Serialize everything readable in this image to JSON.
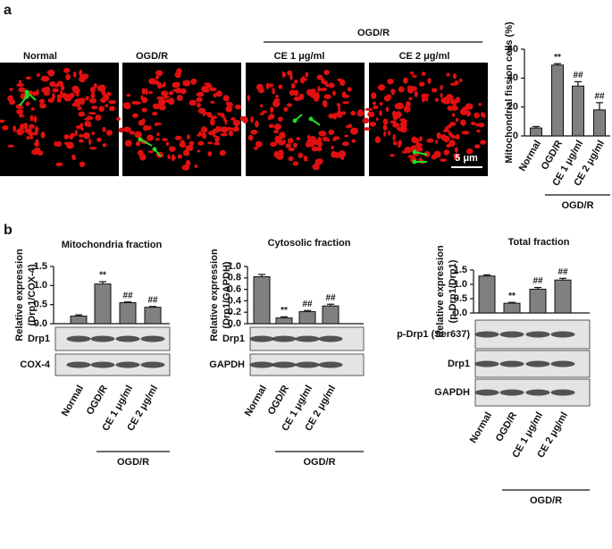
{
  "panel_labels": [
    "a",
    "b"
  ],
  "micrographs": {
    "group_label": "OGD/R",
    "panels": [
      "Normal",
      "OGD/R",
      "CE 1 μg/ml",
      "CE 2 μg/ml"
    ],
    "scale_bar": "5 μm"
  },
  "chart_data": [
    {
      "type": "bar",
      "ylabel": [
        "Mitochondrial fission cells (%)"
      ],
      "categories": [
        "Normal",
        "OGD/R",
        "CE 1 μg/ml",
        "CE 2 μg/ml"
      ],
      "group_label": "OGD/R",
      "values": [
        5.5,
        49,
        34.5,
        18
      ],
      "errors": [
        1,
        1,
        3,
        5
      ],
      "annotations": [
        null,
        "**",
        "##",
        "##"
      ],
      "color": "#808080",
      "ylim": [
        0,
        60
      ],
      "yticks": [
        0,
        20,
        40,
        60
      ],
      "blots": []
    },
    {
      "type": "bar",
      "title": "Mitochondria fraction",
      "ylabel": [
        "Relative expression",
        "(Drp1/COX-4)"
      ],
      "categories": [
        "Normal",
        "OGD/R",
        "CE 1 μg/ml",
        "CE 2 μg/ml"
      ],
      "group_label": "OGD/R",
      "values": [
        0.2,
        1.04,
        0.55,
        0.43
      ],
      "errors": [
        0.03,
        0.06,
        0.02,
        0.02
      ],
      "annotations": [
        null,
        "**",
        "##",
        "##"
      ],
      "color": "#808080",
      "ylim": [
        0,
        1.5
      ],
      "yticks": [
        {
          "value": 0,
          "label": "0.0"
        },
        {
          "value": 0.5,
          "label": "0.5"
        },
        {
          "value": 1,
          "label": "1.0"
        },
        {
          "value": 1.5,
          "label": "1.5"
        }
      ],
      "blots": [
        "Drp1",
        "COX-4"
      ]
    },
    {
      "type": "bar",
      "title": "Cytosolic fraction",
      "ylabel": [
        "Relative expression",
        "(Drp1/GAPDH)"
      ],
      "categories": [
        "Normal",
        "OGD/R",
        "CE 1 μg/ml",
        "CE 2 μg/ml"
      ],
      "group_label": "OGD/R",
      "values": [
        0.82,
        0.1,
        0.21,
        0.31
      ],
      "errors": [
        0.04,
        0.02,
        0.02,
        0.03
      ],
      "annotations": [
        null,
        "**",
        "##",
        "##"
      ],
      "color": "#808080",
      "ylim": [
        0,
        1
      ],
      "yticks": [
        {
          "value": 0,
          "label": "0.0"
        },
        0.2,
        0.4,
        0.6,
        0.8,
        {
          "value": 1,
          "label": "1.0"
        }
      ],
      "blots": [
        "Drp1",
        "GAPDH"
      ]
    },
    {
      "type": "bar",
      "title": "Total fraction",
      "ylabel": [
        "Relative expression",
        "(p-Drp1/Drp1)"
      ],
      "categories": [
        "Normal",
        "OGD/R",
        "CE 1 μg/ml",
        "CE 2 μg/ml"
      ],
      "group_label": "OGD/R",
      "values": [
        1.29,
        0.34,
        0.83,
        1.15
      ],
      "errors": [
        0.04,
        0.03,
        0.06,
        0.06
      ],
      "annotations": [
        null,
        "**",
        "##",
        "##"
      ],
      "color": "#808080",
      "ylim": [
        0,
        1.5
      ],
      "yticks": [
        {
          "value": 0,
          "label": "0.0"
        },
        {
          "value": 0.5,
          "label": "0.5"
        },
        {
          "value": 1,
          "label": "1.0"
        },
        {
          "value": 1.5,
          "label": "1.5"
        }
      ],
      "blots": [
        "p-Drp1 (Ser637)",
        "Drp1",
        "GAPDH"
      ]
    }
  ]
}
